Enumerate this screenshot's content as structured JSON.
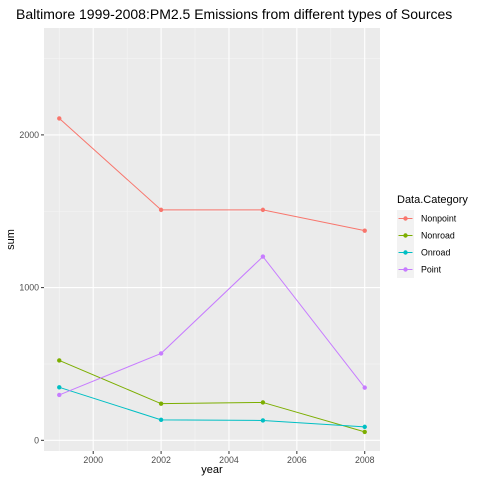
{
  "chart_data": {
    "type": "line",
    "title": "Baltimore 1999-2008:PM2.5 Emissions from different types of Sources",
    "xlabel": "year",
    "ylabel": "sum",
    "x": [
      1999,
      2002,
      2005,
      2008
    ],
    "xlim": [
      1998.55,
      2008.45
    ],
    "ylim": [
      -70,
      2700
    ],
    "x_ticks": [
      2000,
      2002,
      2004,
      2006,
      2008
    ],
    "y_ticks": [
      0,
      1000,
      2000
    ],
    "grid": true,
    "legend": {
      "title": "Data.Category",
      "placement": "right"
    },
    "series": [
      {
        "name": "Nonpoint",
        "color": "#F8766D",
        "values": [
          2108,
          1509,
          1509,
          1373
        ]
      },
      {
        "name": "Nonroad",
        "color": "#7CAE00",
        "values": [
          523,
          240,
          248,
          55
        ]
      },
      {
        "name": "Onroad",
        "color": "#00BFC4",
        "values": [
          347,
          134,
          130,
          88
        ]
      },
      {
        "name": "Point",
        "color": "#C77CFF",
        "values": [
          297,
          569,
          1203,
          345
        ]
      }
    ]
  }
}
